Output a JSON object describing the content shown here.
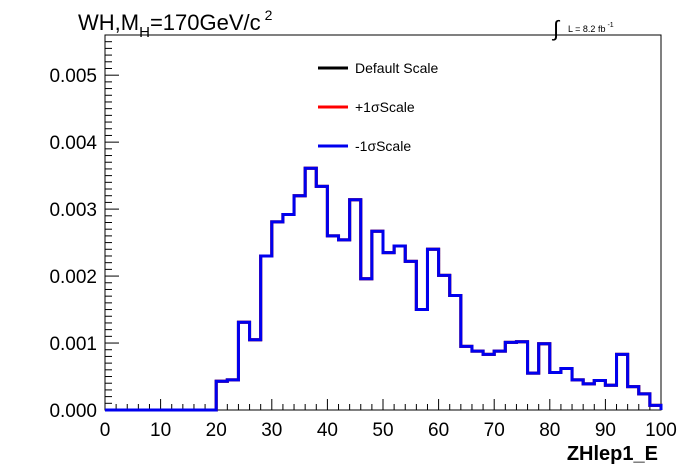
{
  "chart_data": {
    "type": "line",
    "style": "step-histogram",
    "title_parts": {
      "main": "WH,M",
      "subscript": "H",
      "after": "=170GeV/c",
      "superscript": "2"
    },
    "lumi_parts": {
      "integral": "∫",
      "text": "L = 8.2 fb",
      "superscript": "-1"
    },
    "xlabel": "ZHlep1_E",
    "ylabel": "",
    "xlim": [
      0,
      100
    ],
    "ylim": [
      0,
      0.0056
    ],
    "x_ticks": [
      "0",
      "10",
      "20",
      "30",
      "40",
      "50",
      "60",
      "70",
      "80",
      "90",
      "100"
    ],
    "y_ticks": [
      "0.000",
      "0.001",
      "0.002",
      "0.003",
      "0.004",
      "0.005"
    ],
    "bin_edges": [
      0,
      2,
      4,
      6,
      8,
      10,
      12,
      14,
      16,
      18,
      20,
      22,
      24,
      26,
      28,
      30,
      32,
      34,
      36,
      38,
      40,
      42,
      44,
      46,
      48,
      50,
      52,
      54,
      56,
      58,
      60,
      62,
      64,
      66,
      68,
      70,
      72,
      74,
      76,
      78,
      80,
      82,
      84,
      86,
      88,
      90,
      92,
      94,
      96,
      98,
      100
    ],
    "legend_position": "top-center",
    "series": [
      {
        "name": "Default Scale",
        "color": "#000000",
        "values": [
          0,
          0,
          0,
          0,
          0,
          0,
          0,
          0,
          0,
          0,
          0.00043,
          0.00045,
          0.00131,
          0.00105,
          0.0023,
          0.00281,
          0.00292,
          0.0032,
          0.00361,
          0.00334,
          0.0026,
          0.00254,
          0.00314,
          0.00196,
          0.00267,
          0.00235,
          0.00245,
          0.00222,
          0.0015,
          0.0024,
          0.00201,
          0.00171,
          0.00095,
          0.00088,
          0.00083,
          0.00088,
          0.00101,
          0.00102,
          0.00055,
          0.00099,
          0.00056,
          0.00062,
          0.00045,
          0.00039,
          0.00044,
          0.00037,
          0.00083,
          0.00035,
          0.00024,
          7e-05
        ]
      },
      {
        "name": "+1σScale",
        "color": "#ff0000",
        "values": [
          0,
          0,
          0,
          0,
          0,
          0,
          0,
          0,
          0,
          0,
          0.00043,
          0.00045,
          0.00131,
          0.00105,
          0.0023,
          0.00281,
          0.00292,
          0.0032,
          0.00361,
          0.00334,
          0.0026,
          0.00254,
          0.00314,
          0.00196,
          0.00267,
          0.00235,
          0.00245,
          0.00222,
          0.0015,
          0.0024,
          0.00201,
          0.00171,
          0.00095,
          0.00088,
          0.00083,
          0.00088,
          0.00101,
          0.00102,
          0.00055,
          0.00099,
          0.00056,
          0.00062,
          0.00045,
          0.00039,
          0.00044,
          0.00037,
          0.00083,
          0.00035,
          0.00024,
          7e-05
        ]
      },
      {
        "name": "-1σScale",
        "color": "#0000ee",
        "values": [
          0,
          0,
          0,
          0,
          0,
          0,
          0,
          0,
          0,
          0,
          0.00043,
          0.00045,
          0.00131,
          0.00105,
          0.0023,
          0.00281,
          0.00292,
          0.0032,
          0.00361,
          0.00334,
          0.0026,
          0.00254,
          0.00314,
          0.00196,
          0.00267,
          0.00235,
          0.00245,
          0.00222,
          0.0015,
          0.0024,
          0.00201,
          0.00171,
          0.00095,
          0.00088,
          0.00083,
          0.00088,
          0.00101,
          0.00102,
          0.00055,
          0.00099,
          0.00056,
          0.00062,
          0.00045,
          0.00039,
          0.00044,
          0.00037,
          0.00083,
          0.00035,
          0.00024,
          7e-05
        ]
      }
    ]
  }
}
